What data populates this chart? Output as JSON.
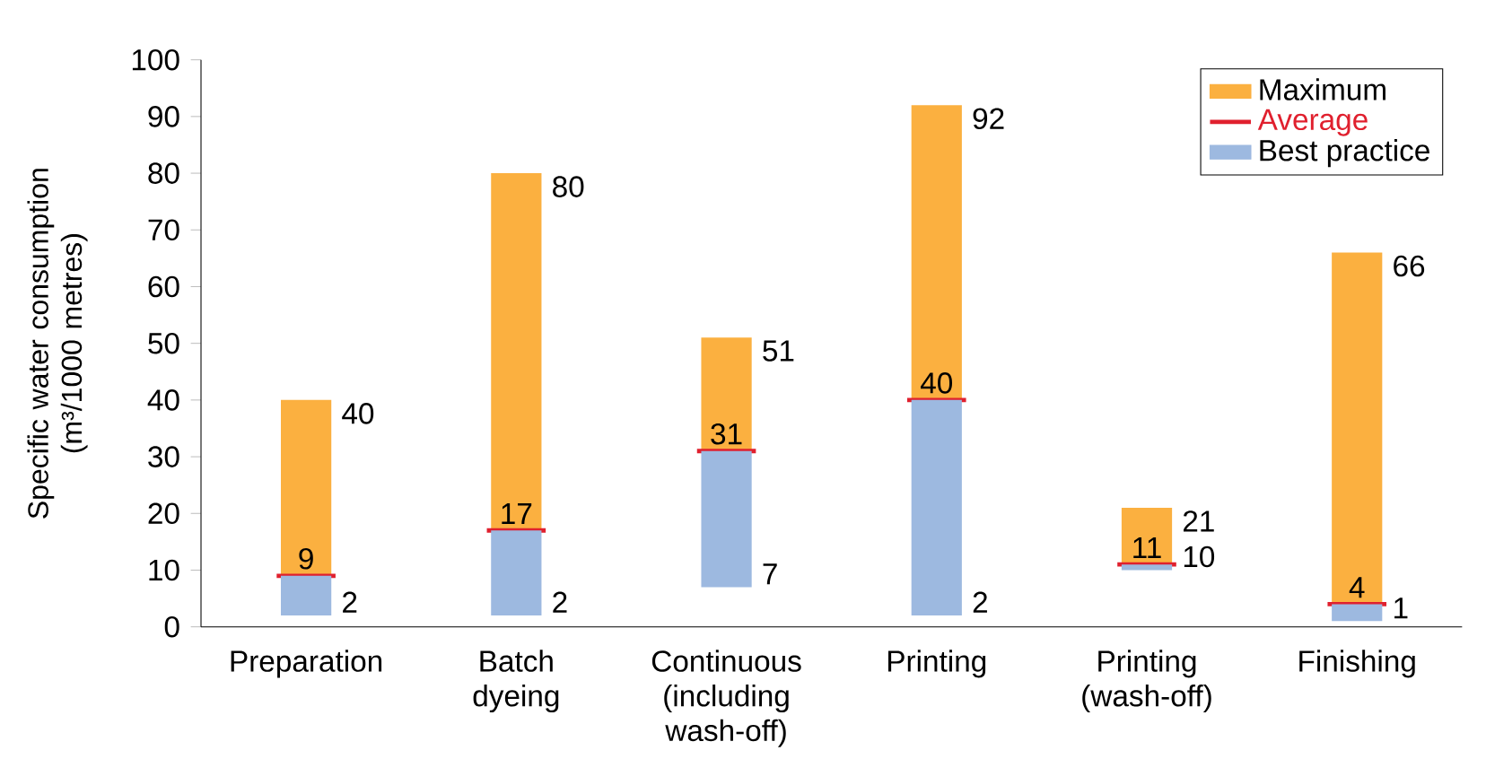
{
  "chart_data": {
    "type": "bar",
    "ylabel": "Specific water consumption (m³/1000 metres)",
    "categories": [
      "Preparation",
      "Batch dyeing",
      "Continuous (including wash-off)",
      "Printing",
      "Printing (wash-off)",
      "Finishing"
    ],
    "series": [
      {
        "name": "Maximum",
        "color": "#fbb040",
        "base": [
          9,
          17,
          31,
          40,
          11,
          4
        ],
        "values": [
          31,
          63,
          20,
          52,
          10,
          62
        ],
        "value_labels": [
          "40",
          "80",
          "51",
          "92",
          "21",
          "66"
        ]
      },
      {
        "name": "Average",
        "type": "bar",
        "color": "#e0202e",
        "base": [
          9,
          17,
          31,
          40,
          11,
          4
        ],
        "values": [
          0,
          0,
          0,
          0,
          0,
          0
        ],
        "value_labels": [
          "9",
          "17",
          "31",
          "40",
          "11",
          "4"
        ]
      },
      {
        "name": "Best practice",
        "color": "#9db9e0",
        "base": [
          2,
          2,
          7,
          2,
          10,
          1
        ],
        "values": [
          7,
          15,
          24,
          38,
          1,
          3
        ]
      }
    ],
    "annotations": [
      {
        "text": "2",
        "x": "Preparation",
        "y": 2
      },
      {
        "text": "2",
        "x": "Batch dyeing",
        "y": 2
      },
      {
        "text": "7",
        "x": "Continuous (including wash-off)",
        "y": 7
      },
      {
        "text": "2",
        "x": "Printing",
        "y": 2
      },
      {
        "text": "10",
        "x": "Printing (wash-off)",
        "y": 10
      },
      {
        "text": "1",
        "x": "Finishing",
        "y": 1
      }
    ],
    "ylim": [
      0,
      100
    ],
    "yticks": [
      0,
      10,
      20,
      30,
      40,
      50,
      60,
      70,
      80,
      90,
      100
    ],
    "legend": "top right",
    "grid": false
  }
}
